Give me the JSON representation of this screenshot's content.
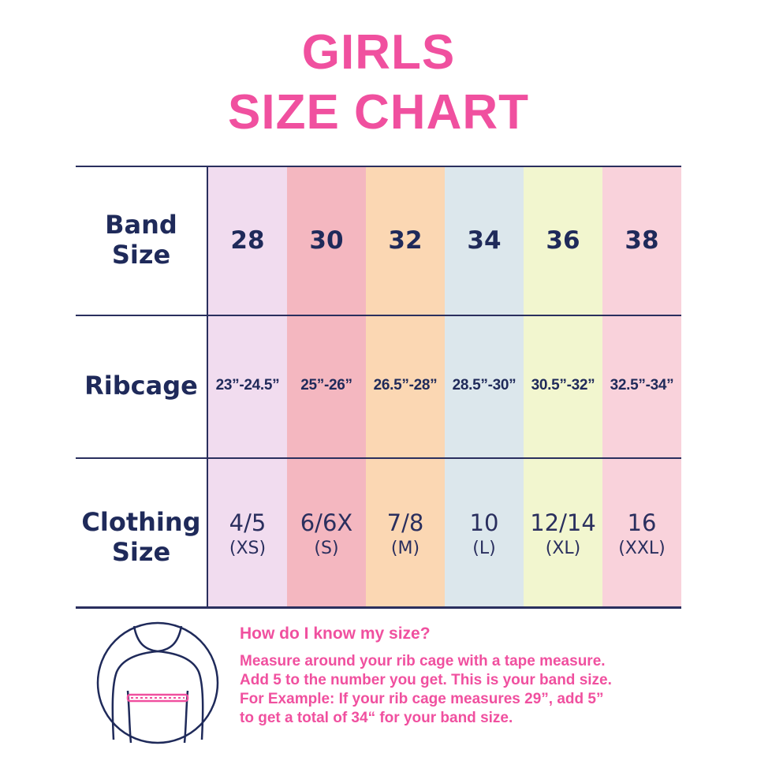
{
  "title": {
    "line1": "GIRLS",
    "line2": "SIZE CHART"
  },
  "colors": {
    "title": "#f0509f",
    "text": "#1f2a5a",
    "columns": [
      "#f1dcef",
      "#f4b7c0",
      "#fbd7b3",
      "#dce7ec",
      "#f2f6cf",
      "#f9d2db"
    ]
  },
  "chart_data": {
    "type": "table",
    "row_headers": [
      [
        "Band",
        "Size"
      ],
      [
        "Ribcage"
      ],
      [
        "Clothing",
        "Size"
      ]
    ],
    "band_sizes": [
      "28",
      "30",
      "32",
      "34",
      "36",
      "38"
    ],
    "ribcage": [
      "23”-24.5”",
      "25”-26”",
      "26.5”-28”",
      "28.5”-30”",
      "30.5”-32”",
      "32.5”-34”"
    ],
    "clothing_sizes": [
      {
        "size": "4/5",
        "label": "(XS)"
      },
      {
        "size": "6/6X",
        "label": "(S)"
      },
      {
        "size": "7/8",
        "label": "(M)"
      },
      {
        "size": "10",
        "label": "(L)"
      },
      {
        "size": "12/14",
        "label": "(XL)"
      },
      {
        "size": "16",
        "label": "(XXL)"
      }
    ]
  },
  "help": {
    "title": "How do I know my size?",
    "lines": [
      "Measure around your rib cage with a tape measure.",
      "Add 5 to the number you get. This is your band size.",
      "For Example: If your rib cage measures 29”, add 5”",
      "to get a total of 34“ for your band size."
    ]
  },
  "illustration": {
    "icon": "torso-measurement-icon"
  }
}
